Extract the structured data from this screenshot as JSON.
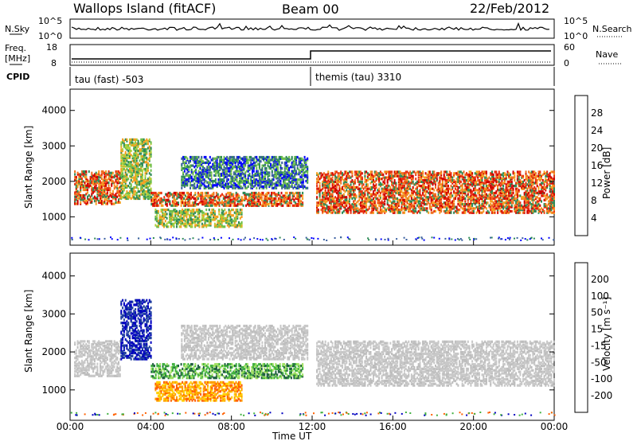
{
  "header": {
    "site": "Wallops Island (fitACF)",
    "beam": "Beam 00",
    "date": "22/Feb/2012"
  },
  "summary_panels": {
    "nsky_label": "N.Sky",
    "nsky_ticks": [
      "10^5",
      "10^0"
    ],
    "nsearch_label": "N.Search",
    "freq_label_1": "Freq.",
    "freq_label_2": "[MHz]",
    "freq_ticks": [
      "18",
      "8"
    ],
    "nave_ticks": [
      "60",
      "0"
    ],
    "nave_label": "Nave",
    "cpid_label": "CPID",
    "cpid_1": "tau (fast) -503",
    "cpid_2": "themis (tau) 3310"
  },
  "chart_data": [
    {
      "type": "heatmap",
      "title": "",
      "ylabel": "Slant Range [km]",
      "xlabel": "Time UT",
      "x_ticks": [
        "00:00",
        "04:00",
        "08:00",
        "12:00",
        "16:00",
        "20:00",
        "00:00"
      ],
      "y_ticks": [
        "1000",
        "2000",
        "3000",
        "4000"
      ],
      "ylim": [
        200,
        4600
      ],
      "colorbar": {
        "label": "Power [dB]",
        "ticks": [
          "28",
          "24",
          "20",
          "16",
          "12",
          "8",
          "4"
        ],
        "colors": [
          "#0000ff",
          "#3a5fa0",
          "#2e8b57",
          "#6fbf4a",
          "#b0d03a",
          "#f5d020",
          "#f5a020",
          "#f07020",
          "#e83010",
          "#d00000"
        ]
      },
      "bands": [
        {
          "x": [
            0.2,
            2.5
          ],
          "y": [
            1350,
            2300
          ],
          "level": "high"
        },
        {
          "x": [
            2.5,
            4.0
          ],
          "y": [
            1500,
            3200
          ],
          "level": "mid"
        },
        {
          "x": [
            4.0,
            11.5
          ],
          "y": [
            1300,
            1700
          ],
          "level": "high"
        },
        {
          "x": [
            4.2,
            8.5
          ],
          "y": [
            700,
            1200
          ],
          "level": "mid"
        },
        {
          "x": [
            5.5,
            11.8
          ],
          "y": [
            1800,
            2700
          ],
          "level": "low"
        },
        {
          "x": [
            12.2,
            24.0
          ],
          "y": [
            1100,
            2300
          ],
          "level": "high"
        }
      ]
    },
    {
      "type": "heatmap",
      "title": "",
      "ylabel": "Slant Range [km]",
      "xlabel": "Time UT",
      "x_ticks": [
        "00:00",
        "04:00",
        "08:00",
        "12:00",
        "16:00",
        "20:00",
        "00:00"
      ],
      "y_ticks": [
        "1000",
        "2000",
        "3000",
        "4000"
      ],
      "ylim": [
        200,
        4600
      ],
      "colorbar": {
        "label": "Velocity [m s⁻¹]",
        "ticks": [
          "200",
          "100",
          "50",
          "15",
          "-15",
          "-50",
          "-100",
          "-200"
        ],
        "colors": [
          "#ff0000",
          "#ff6000",
          "#ffa000",
          "#ffd000",
          "#c8c8c8",
          "#c8c8c8",
          "#a0e060",
          "#40b040",
          "#206040",
          "#2040a0",
          "#0000c0"
        ]
      },
      "bands": [
        {
          "x": [
            0.2,
            2.5
          ],
          "y": [
            1350,
            2300
          ],
          "level": "ground"
        },
        {
          "x": [
            2.5,
            4.0
          ],
          "y": [
            1800,
            3400
          ],
          "level": "negative"
        },
        {
          "x": [
            4.0,
            11.5
          ],
          "y": [
            1300,
            1700
          ],
          "level": "positive"
        },
        {
          "x": [
            4.2,
            8.5
          ],
          "y": [
            700,
            1200
          ],
          "level": "orange"
        },
        {
          "x": [
            5.5,
            11.8
          ],
          "y": [
            1800,
            2700
          ],
          "level": "ground"
        },
        {
          "x": [
            12.2,
            24.0
          ],
          "y": [
            1100,
            2300
          ],
          "level": "ground"
        }
      ]
    }
  ]
}
